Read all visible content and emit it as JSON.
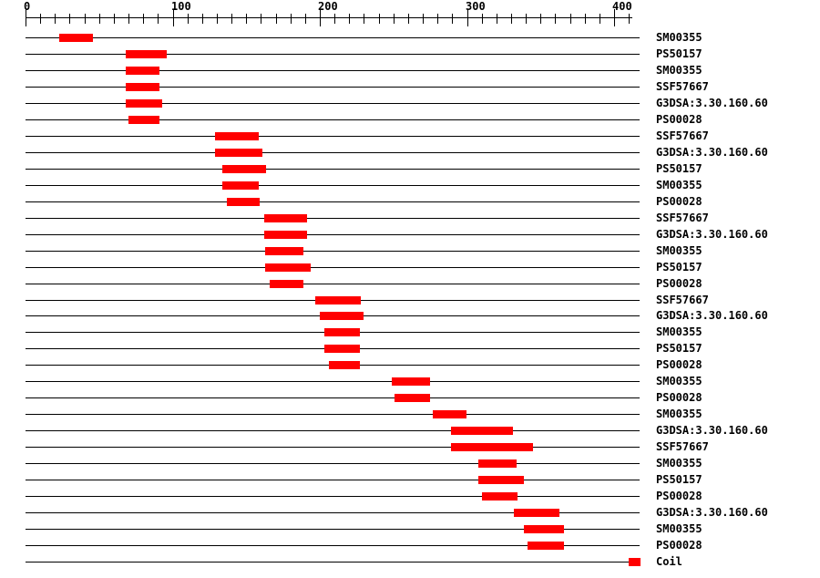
{
  "colors": {
    "background": "#ffffff",
    "bar": "#ff0000",
    "line": "#000000",
    "text": "#000000"
  },
  "chart_data": {
    "type": "bar",
    "subtype": "protein-domain-architecture-tracks",
    "title": "",
    "xlabel": "",
    "legend": "none",
    "grid": "off",
    "axis": {
      "min": 0,
      "max": 418,
      "major_ticks": [
        0,
        100,
        200,
        300,
        400
      ],
      "tick_labels": [
        "0",
        "100",
        "200",
        "300",
        "400"
      ],
      "minor_tick_interval": 10,
      "minor_tick_max": 410
    },
    "rows": [
      {
        "label": "SM00355",
        "start": 23,
        "end": 46
      },
      {
        "label": "PS50157",
        "start": 68,
        "end": 96
      },
      {
        "label": "SM00355",
        "start": 68,
        "end": 91
      },
      {
        "label": "SSF57667",
        "start": 68,
        "end": 91
      },
      {
        "label": "G3DSA:3.30.160.60",
        "start": 68,
        "end": 93
      },
      {
        "label": "PS00028",
        "start": 70,
        "end": 91
      },
      {
        "label": "SSF57667",
        "start": 129,
        "end": 159
      },
      {
        "label": "G3DSA:3.30.160.60",
        "start": 129,
        "end": 161
      },
      {
        "label": "PS50157",
        "start": 134,
        "end": 164
      },
      {
        "label": "SM00355",
        "start": 134,
        "end": 159
      },
      {
        "label": "PS00028",
        "start": 137,
        "end": 159
      },
      {
        "label": "SSF57667",
        "start": 162,
        "end": 191
      },
      {
        "label": "G3DSA:3.30.160.60",
        "start": 162,
        "end": 191
      },
      {
        "label": "SM00355",
        "start": 163,
        "end": 189
      },
      {
        "label": "PS50157",
        "start": 163,
        "end": 194
      },
      {
        "label": "PS00028",
        "start": 166,
        "end": 189
      },
      {
        "label": "SSF57667",
        "start": 197,
        "end": 228
      },
      {
        "label": "G3DSA:3.30.160.60",
        "start": 200,
        "end": 230
      },
      {
        "label": "SM00355",
        "start": 203,
        "end": 227
      },
      {
        "label": "PS50157",
        "start": 203,
        "end": 227
      },
      {
        "label": "PS00028",
        "start": 206,
        "end": 227
      },
      {
        "label": "SM00355",
        "start": 249,
        "end": 275
      },
      {
        "label": "PS00028",
        "start": 251,
        "end": 275
      },
      {
        "label": "SM00355",
        "start": 277,
        "end": 300
      },
      {
        "label": "G3DSA:3.30.160.60",
        "start": 289,
        "end": 331
      },
      {
        "label": "SSF57667",
        "start": 289,
        "end": 345
      },
      {
        "label": "SM00355",
        "start": 308,
        "end": 334
      },
      {
        "label": "PS50157",
        "start": 308,
        "end": 339
      },
      {
        "label": "PS00028",
        "start": 310,
        "end": 334
      },
      {
        "label": "G3DSA:3.30.160.60",
        "start": 332,
        "end": 363
      },
      {
        "label": "SM00355",
        "start": 339,
        "end": 366
      },
      {
        "label": "PS00028",
        "start": 341,
        "end": 366
      },
      {
        "label": "Coil",
        "start": 410,
        "end": 418
      }
    ]
  }
}
